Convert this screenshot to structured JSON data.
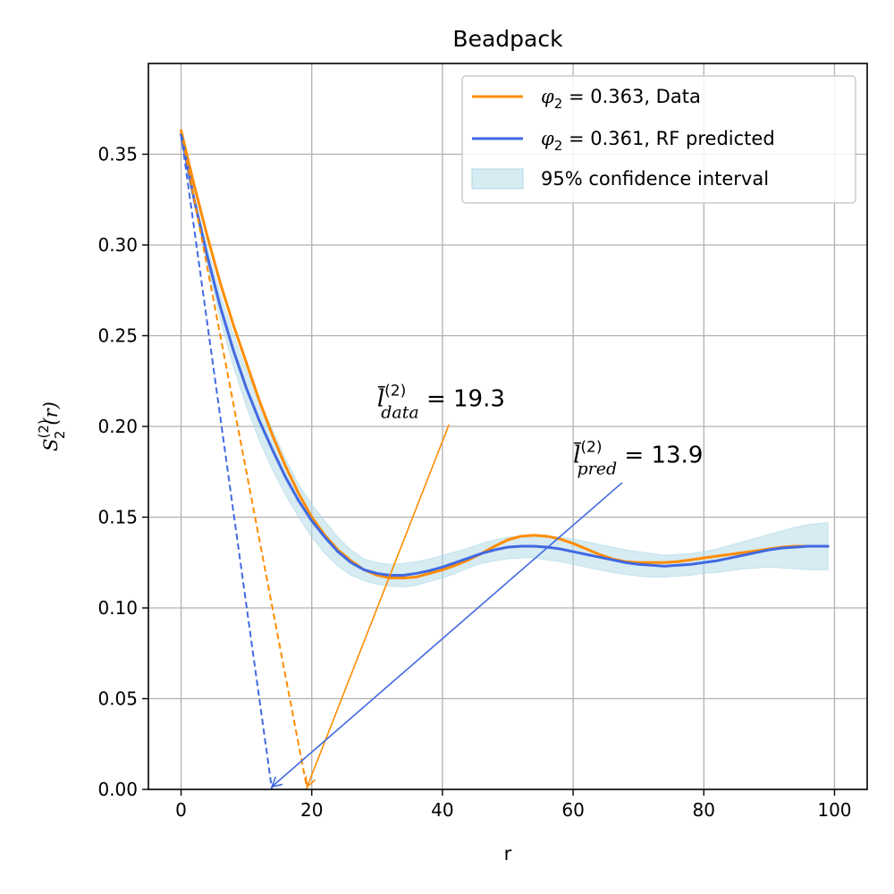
{
  "chart_data": {
    "type": "line",
    "title": "Beadpack",
    "xlabel": "r",
    "ylabel": "S2(2)(r)",
    "ylabel_parts": {
      "base": "S",
      "sub": "2",
      "sup": "(2)",
      "arg": "(r)"
    },
    "xlim": [
      -5,
      105
    ],
    "ylim": [
      0,
      0.4
    ],
    "xticks": [
      0,
      20,
      40,
      60,
      80,
      100
    ],
    "yticks": [
      0.0,
      0.05,
      0.1,
      0.15,
      0.2,
      0.25,
      0.3,
      0.35
    ],
    "xtick_labels": [
      "0",
      "20",
      "40",
      "60",
      "80",
      "100"
    ],
    "ytick_labels": [
      "0.00",
      "0.05",
      "0.10",
      "0.15",
      "0.20",
      "0.25",
      "0.30",
      "0.35"
    ],
    "grid": true,
    "legend_position": "top-right",
    "series": [
      {
        "name": "φ2 = 0.363, Data",
        "color": "#ff8c00",
        "x": [
          0,
          2,
          4,
          6,
          8,
          10,
          12,
          14,
          16,
          18,
          20,
          22,
          24,
          26,
          28,
          30,
          32,
          34,
          36,
          38,
          40,
          42,
          44,
          46,
          48,
          50,
          52,
          54,
          56,
          58,
          60,
          62,
          64,
          66,
          68,
          70,
          72,
          74,
          76,
          78,
          80,
          82,
          84,
          86,
          88,
          90,
          92,
          94,
          96,
          99
        ],
        "y": [
          0.363,
          0.333,
          0.305,
          0.279,
          0.256,
          0.235,
          0.214,
          0.195,
          0.178,
          0.163,
          0.15,
          0.14,
          0.132,
          0.126,
          0.121,
          0.118,
          0.1165,
          0.1165,
          0.117,
          0.119,
          0.121,
          0.1235,
          0.1265,
          0.13,
          0.134,
          0.1375,
          0.1395,
          0.14,
          0.1395,
          0.138,
          0.1355,
          0.1325,
          0.1295,
          0.127,
          0.1255,
          0.125,
          0.125,
          0.125,
          0.1255,
          0.1265,
          0.1275,
          0.1285,
          0.1295,
          0.1305,
          0.1315,
          0.1325,
          0.1335,
          0.134,
          0.134,
          0.134
        ]
      },
      {
        "name": "φ2 = 0.361, RF predicted",
        "color": "#4169e1",
        "x": [
          0,
          2,
          4,
          6,
          8,
          10,
          12,
          14,
          16,
          18,
          20,
          22,
          24,
          26,
          28,
          30,
          32,
          34,
          36,
          38,
          40,
          42,
          44,
          46,
          48,
          50,
          52,
          54,
          56,
          58,
          60,
          62,
          64,
          66,
          68,
          70,
          72,
          74,
          76,
          78,
          80,
          82,
          84,
          86,
          88,
          90,
          92,
          94,
          96,
          99
        ],
        "y": [
          0.361,
          0.325,
          0.294,
          0.266,
          0.242,
          0.221,
          0.203,
          0.187,
          0.172,
          0.159,
          0.148,
          0.139,
          0.131,
          0.125,
          0.121,
          0.119,
          0.118,
          0.118,
          0.119,
          0.1205,
          0.1225,
          0.125,
          0.1275,
          0.13,
          0.132,
          0.1335,
          0.134,
          0.134,
          0.1335,
          0.1325,
          0.131,
          0.1295,
          0.128,
          0.1265,
          0.125,
          0.124,
          0.1235,
          0.123,
          0.1235,
          0.124,
          0.125,
          0.126,
          0.1275,
          0.129,
          0.1305,
          0.132,
          0.133,
          0.1335,
          0.134,
          0.134
        ]
      }
    ],
    "confidence_band": {
      "name": "95% confidence interval",
      "color": "#add8e6",
      "x": [
        0,
        2,
        4,
        6,
        8,
        10,
        12,
        14,
        16,
        18,
        20,
        22,
        24,
        26,
        28,
        30,
        32,
        34,
        36,
        38,
        40,
        42,
        44,
        46,
        48,
        50,
        52,
        54,
        56,
        58,
        60,
        62,
        64,
        66,
        68,
        70,
        72,
        74,
        76,
        78,
        80,
        82,
        84,
        86,
        88,
        90,
        92,
        94,
        96,
        99
      ],
      "lower": [
        0.361,
        0.323,
        0.289,
        0.259,
        0.233,
        0.211,
        0.192,
        0.176,
        0.162,
        0.15,
        0.139,
        0.13,
        0.123,
        0.118,
        0.115,
        0.113,
        0.112,
        0.1115,
        0.1125,
        0.1145,
        0.1165,
        0.119,
        0.122,
        0.1245,
        0.126,
        0.127,
        0.1275,
        0.1275,
        0.1265,
        0.1255,
        0.124,
        0.1225,
        0.121,
        0.1195,
        0.1185,
        0.1175,
        0.117,
        0.117,
        0.1175,
        0.118,
        0.119,
        0.1195,
        0.1205,
        0.1215,
        0.122,
        0.1225,
        0.122,
        0.1215,
        0.121,
        0.121
      ],
      "upper": [
        0.361,
        0.327,
        0.299,
        0.273,
        0.251,
        0.231,
        0.214,
        0.198,
        0.182,
        0.168,
        0.157,
        0.148,
        0.139,
        0.132,
        0.127,
        0.125,
        0.124,
        0.1245,
        0.1255,
        0.127,
        0.129,
        0.131,
        0.133,
        0.1355,
        0.1375,
        0.139,
        0.1395,
        0.1395,
        0.1395,
        0.139,
        0.138,
        0.1365,
        0.135,
        0.1335,
        0.132,
        0.131,
        0.13,
        0.129,
        0.1295,
        0.13,
        0.131,
        0.1325,
        0.1345,
        0.1365,
        0.1385,
        0.1405,
        0.1425,
        0.1445,
        0.146,
        0.147
      ]
    },
    "tangent_lines": [
      {
        "color": "#ff8c00",
        "x0": 0,
        "y0": 0.363,
        "x1": 19.3,
        "y1": 0
      },
      {
        "color": "#4169e1",
        "x0": 0,
        "y0": 0.361,
        "x1": 13.9,
        "y1": 0
      }
    ],
    "annotations": [
      {
        "label_base": "l",
        "label_sup": "(2)",
        "label_sub": "data",
        "label_value": " = 19.3",
        "text_x": 30,
        "text_y": 0.211,
        "arrow_from": [
          41,
          0.201
        ],
        "arrow_to": [
          19.3,
          0.0
        ],
        "color": "#ff8c00"
      },
      {
        "label_base": "l",
        "label_sup": "(2)",
        "label_sub": "pred",
        "label_value": " = 13.9",
        "text_x": 60,
        "text_y": 0.18,
        "arrow_from": [
          67.5,
          0.169
        ],
        "arrow_to": [
          13.9,
          0.0
        ],
        "color": "#4169e1"
      }
    ],
    "legend": [
      {
        "kind": "line",
        "color": "#ff8c00",
        "math": "φ",
        "sub": "2",
        "rest": " = 0.363, Data"
      },
      {
        "kind": "line",
        "color": "#4169e1",
        "math": "φ",
        "sub": "2",
        "rest": " = 0.361, RF predicted"
      },
      {
        "kind": "patch",
        "color": "#add8e6",
        "text": "95% confidence interval"
      }
    ]
  }
}
